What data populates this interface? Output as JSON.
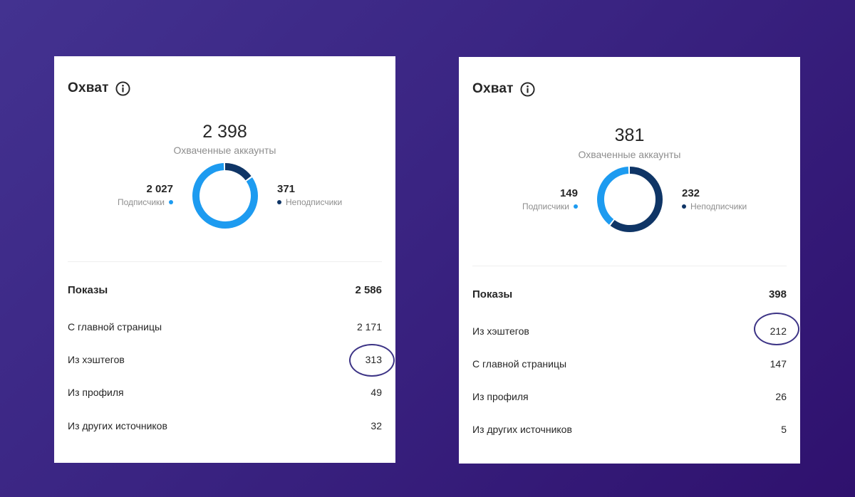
{
  "colors": {
    "followers": "#1d9bf0",
    "non_followers": "#0f3566",
    "highlight": "#3d3486"
  },
  "left": {
    "title": "Охват",
    "total": "2 398",
    "total_label": "Охваченные аккаунты",
    "followers_value": "2 027",
    "followers_label": "Подписчики",
    "followers_count": 2027,
    "non_followers_value": "371",
    "non_followers_label": "Неподписчики",
    "non_followers_count": 371,
    "impressions_label": "Показы",
    "impressions_value": "2 586",
    "rows": [
      {
        "label": "С главной страницы",
        "value": "2 171"
      },
      {
        "label": "Из хэштегов",
        "value": "313"
      },
      {
        "label": "Из профиля",
        "value": "49"
      },
      {
        "label": "Из других источников",
        "value": "32"
      }
    ]
  },
  "right": {
    "title": "Охват",
    "total": "381",
    "total_label": "Охваченные аккаунты",
    "followers_value": "149",
    "followers_label": "Подписчики",
    "followers_count": 149,
    "non_followers_value": "232",
    "non_followers_label": "Неподписчики",
    "non_followers_count": 232,
    "impressions_label": "Показы",
    "impressions_value": "398",
    "rows": [
      {
        "label": "Из хэштегов",
        "value": "212"
      },
      {
        "label": "С главной страницы",
        "value": "147"
      },
      {
        "label": "Из профиля",
        "value": "26"
      },
      {
        "label": "Из других источников",
        "value": "5"
      }
    ]
  }
}
